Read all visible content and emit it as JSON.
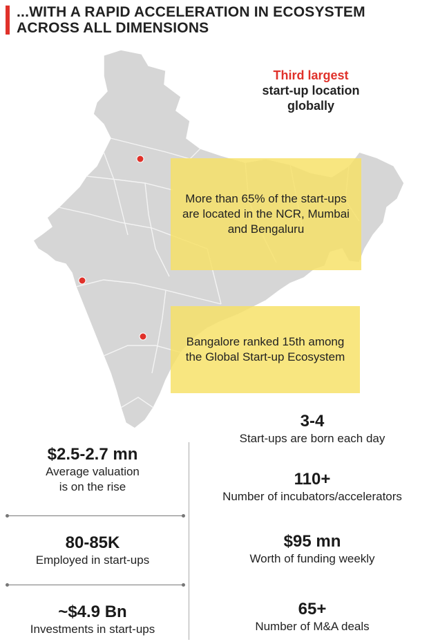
{
  "header": {
    "title": "...WITH A RAPID ACCELERATION IN ECOSYSTEM ACROSS ALL DIMENSIONS"
  },
  "map": {
    "region": "India",
    "fill_color": "#d6d6d6",
    "border_color": "#f2f2f2",
    "marker_color": "#e0312a",
    "markers": [
      {
        "name": "NCR"
      },
      {
        "name": "Mumbai"
      },
      {
        "name": "Bengaluru"
      }
    ]
  },
  "callout": {
    "highlight": "Third largest",
    "text_line1": "start-up location",
    "text_line2": "globally"
  },
  "boxes": [
    {
      "text": "More than 65% of the start-ups are located in the NCR, Mumbai and Bengaluru"
    },
    {
      "text": "Bangalore ranked 15th among the Global Start-up Ecosystem"
    }
  ],
  "stats_left": [
    {
      "value": "$2.5-2.7 mn",
      "label_line1": "Average valuation",
      "label_line2": "is on the rise"
    },
    {
      "value": "80-85K",
      "label_line1": "Employed in start-ups"
    },
    {
      "value": "~$4.9 Bn",
      "label_line1": "Investments  in start-ups"
    }
  ],
  "stats_right": [
    {
      "value": "3-4",
      "label_line1": "Start-ups are born each day"
    },
    {
      "value": "110+",
      "label_line1": "Number of incubators/accelerators"
    },
    {
      "value": "$95 mn",
      "label_line1": "Worth of funding weekly"
    },
    {
      "value": "65+",
      "label_line1": "Number of M&A deals"
    }
  ],
  "colors": {
    "accent": "#e0312a",
    "box_fill": "#f6e164"
  }
}
